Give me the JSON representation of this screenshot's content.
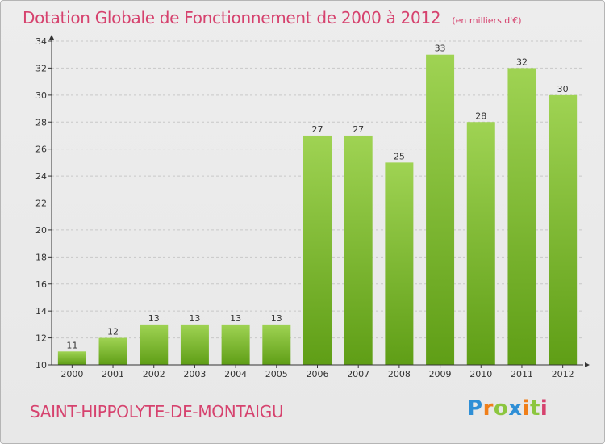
{
  "title": "Dotation Globale de Fonctionnement de 2000 à 2012",
  "subtitle": "(en milliers d'€)",
  "commune": "SAINT-HIPPOLYTE-DE-MONTAIGU",
  "brand": {
    "letters": [
      "P",
      "r",
      "o",
      "x",
      "i",
      "t",
      "i"
    ],
    "colors": [
      "#2f8fd6",
      "#f07f1a",
      "#8cc63f",
      "#2f8fd6",
      "#f07f1a",
      "#8cc63f",
      "#d6426e"
    ]
  },
  "colors": {
    "title": "#d6426e",
    "bar_top": "#9fd353",
    "bar_bottom": "#5f9e16",
    "axis": "#333333",
    "grid": "#c8c8c8"
  },
  "chart_data": {
    "type": "bar",
    "categories": [
      "2000",
      "2001",
      "2002",
      "2003",
      "2004",
      "2005",
      "2006",
      "2007",
      "2008",
      "2009",
      "2010",
      "2011",
      "2012"
    ],
    "values": [
      11,
      12,
      13,
      13,
      13,
      13,
      27,
      27,
      25,
      33,
      28,
      32,
      30
    ],
    "data_labels": [
      "11",
      "12",
      "13",
      "13",
      "13",
      "13",
      "27",
      "27",
      "25",
      "33",
      "28",
      "32",
      "30"
    ],
    "title": "Dotation Globale de Fonctionnement de 2000 à 2012",
    "subtitle": "(en milliers d'€)",
    "xlabel": "",
    "ylabel": "",
    "ylim": [
      10,
      34
    ],
    "yticks": [
      10,
      12,
      14,
      16,
      18,
      20,
      22,
      24,
      26,
      28,
      30,
      32,
      34
    ],
    "grid": true,
    "legend": "none"
  }
}
